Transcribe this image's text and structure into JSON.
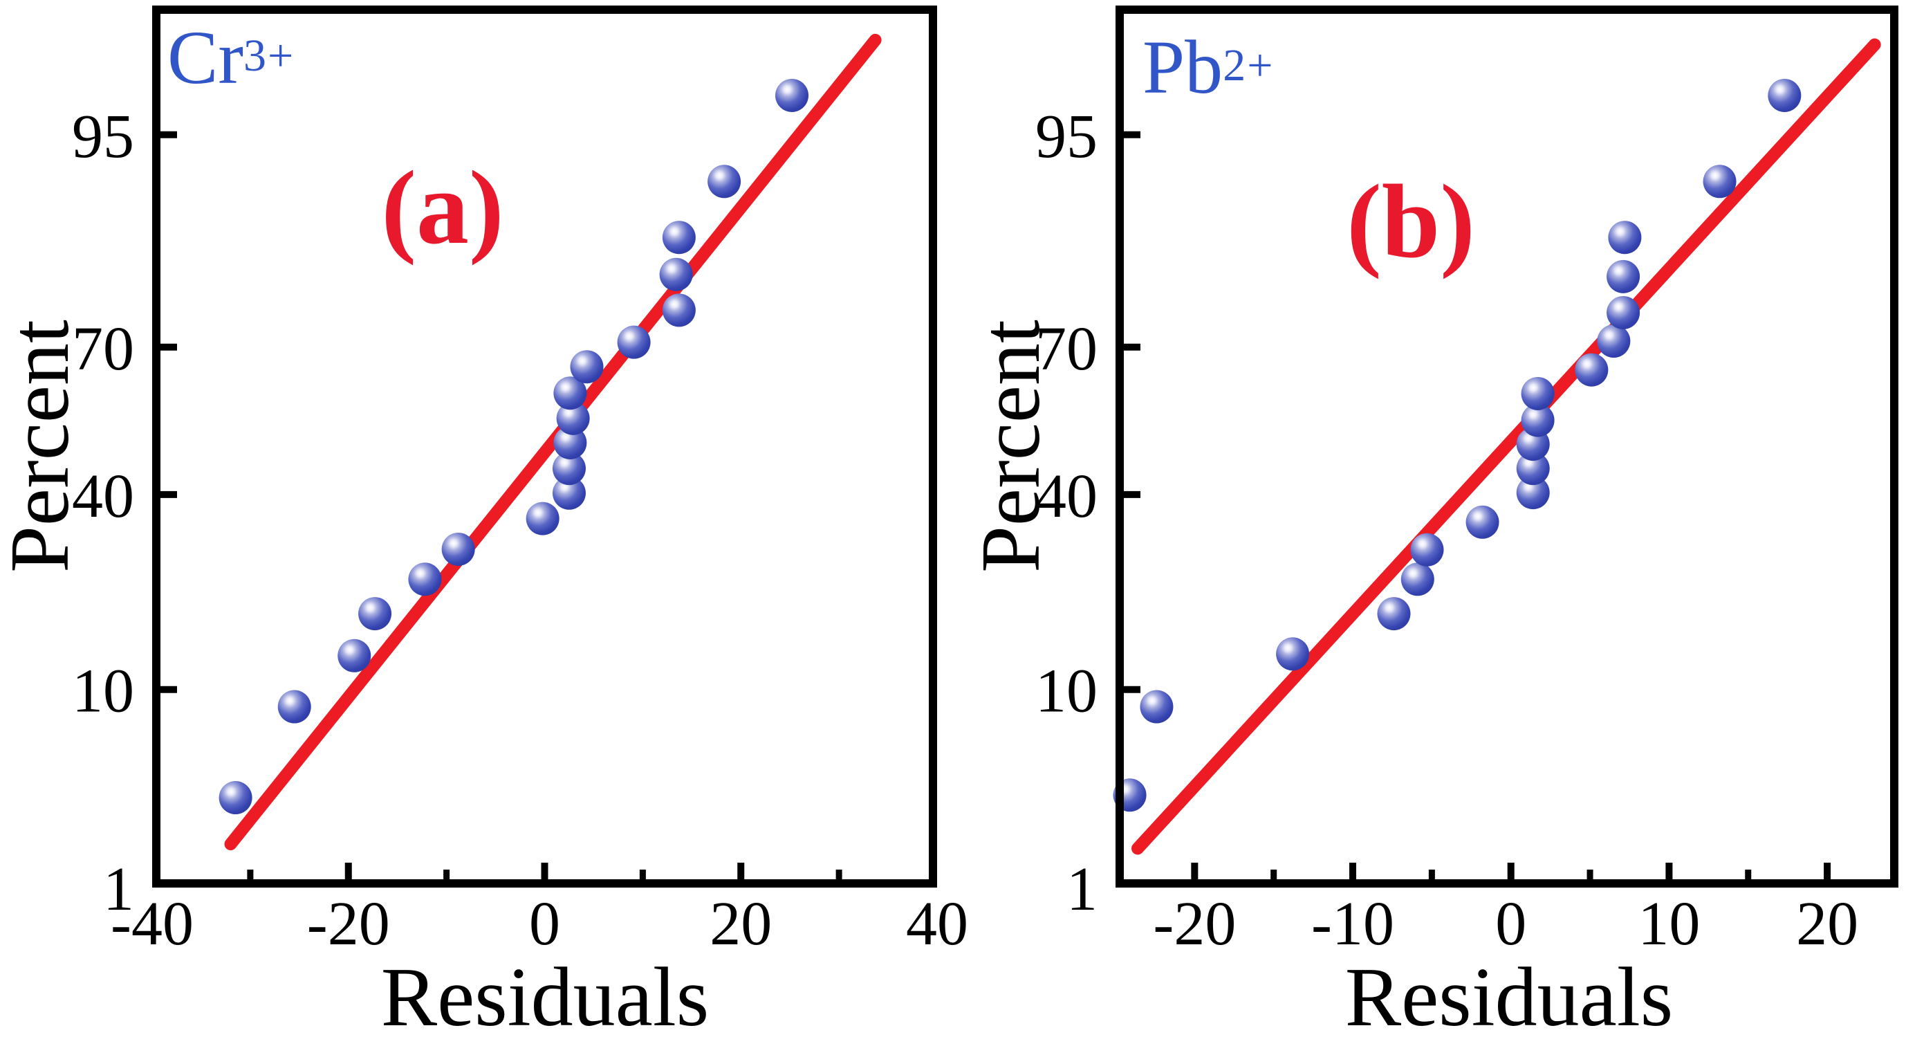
{
  "figure": {
    "description_colors": {
      "fit_line_red": "#ED1C24",
      "marker_blue": "#3443AF",
      "ion_label_blue": "#3156C8",
      "panel_letter_red": "#E8192D",
      "axis_black": "#000000"
    }
  },
  "chart_data": [
    {
      "type": "scatter",
      "panel_letter": "(a)",
      "ion_base": "Cr",
      "ion_superscript": "3+",
      "xlabel": "Residuals",
      "ylabel": "Percent",
      "y_scale": "normal-probability",
      "xlim": [
        -40,
        40
      ],
      "ylim_percent": [
        1,
        99
      ],
      "x_ticks_labeled": [
        -40,
        -20,
        0,
        20,
        40
      ],
      "x_ticks_minor": [
        -30,
        -10,
        10,
        30
      ],
      "y_ticks_percent": [
        1,
        10,
        40,
        70,
        95
      ],
      "grid": "off",
      "legend": "none",
      "points_xy_percent": [
        [
          -31.5,
          3.2
        ],
        [
          -25.5,
          8.5
        ],
        [
          -19.4,
          13.5
        ],
        [
          -17.3,
          18.9
        ],
        [
          -12.2,
          24.2
        ],
        [
          -8.8,
          29.4
        ],
        [
          -0.2,
          35.2
        ],
        [
          2.5,
          40.3
        ],
        [
          2.5,
          45.4
        ],
        [
          2.6,
          50.8
        ],
        [
          2.9,
          55.9
        ],
        [
          2.6,
          61.1
        ],
        [
          4.3,
          66.3
        ],
        [
          9.1,
          70.9
        ],
        [
          13.7,
          76.4
        ],
        [
          13.4,
          81.8
        ],
        [
          13.7,
          86.5
        ],
        [
          18.3,
          91.9
        ],
        [
          25.2,
          96.8
        ]
      ],
      "fit_line": {
        "x": [
          -32.0,
          33.7
        ],
        "percent": [
          1.8,
          98.4
        ]
      },
      "line_color": "#ED1C24",
      "marker_color": "#3443AF"
    },
    {
      "type": "scatter",
      "panel_letter": "(b)",
      "ion_base": "Pb",
      "ion_superscript": "2+",
      "xlabel": "Residuals",
      "ylabel": "Percent",
      "y_scale": "normal-probability",
      "xlim": [
        -25,
        24.5
      ],
      "ylim_percent": [
        1,
        99
      ],
      "x_ticks_labeled": [
        -20,
        -10,
        0,
        10,
        20
      ],
      "x_ticks_minor": [
        -15,
        -5,
        5,
        15
      ],
      "y_ticks_percent": [
        1,
        10,
        40,
        70,
        95
      ],
      "grid": "off",
      "legend": "none",
      "points_xy_percent": [
        [
          -24.1,
          3.3
        ],
        [
          -22.4,
          8.5
        ],
        [
          -13.8,
          13.7
        ],
        [
          -7.4,
          18.9
        ],
        [
          -5.9,
          24.2
        ],
        [
          -5.3,
          29.3
        ],
        [
          -1.8,
          34.5
        ],
        [
          1.4,
          40.4
        ],
        [
          1.4,
          45.4
        ],
        [
          1.4,
          50.5
        ],
        [
          1.7,
          55.5
        ],
        [
          1.7,
          61.0
        ],
        [
          5.1,
          65.7
        ],
        [
          6.5,
          71.1
        ],
        [
          7.1,
          76.0
        ],
        [
          7.1,
          81.5
        ],
        [
          7.2,
          86.5
        ],
        [
          13.2,
          91.9
        ],
        [
          17.3,
          96.8
        ]
      ],
      "fit_line": {
        "x": [
          -23.6,
          23.0
        ],
        "percent": [
          1.7,
          98.3
        ]
      },
      "line_color": "#ED1C24",
      "marker_color": "#3443AF"
    }
  ]
}
